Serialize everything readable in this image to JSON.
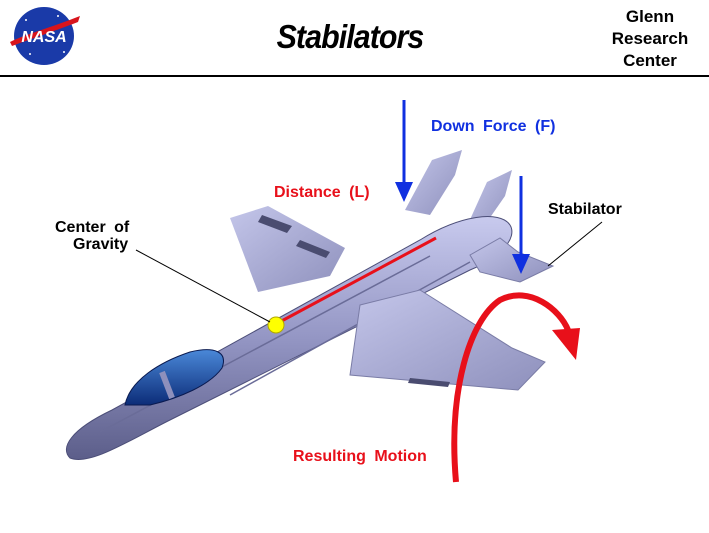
{
  "header": {
    "title": "Stabilators",
    "org_lines": [
      "Glenn",
      "Research",
      "Center"
    ],
    "logo_text": "NASA"
  },
  "labels": {
    "down_force": "Down Force (F)",
    "distance": "Distance (L)",
    "stabilator": "Stabilator",
    "cg_line1": "Center of",
    "cg_line2": "Gravity",
    "resulting_motion": "Resulting Motion"
  },
  "colors": {
    "force_arrow": "#1030e0",
    "distance_line": "#e8101a",
    "motion_arrow": "#e8101a",
    "cg_dot": "#ffff00",
    "fuselage": "#9a9cc8",
    "wing": "#b0b2dc",
    "canopy": "#1e4fa8"
  }
}
